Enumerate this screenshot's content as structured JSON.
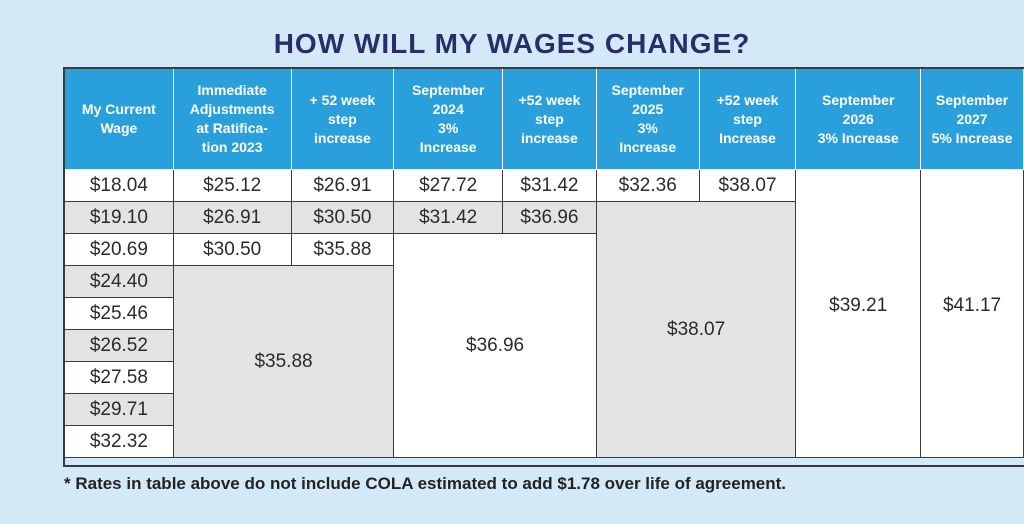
{
  "title": "HOW WILL MY WAGES CHANGE?",
  "headers": {
    "h0": [
      "My Current",
      "Wage"
    ],
    "h1": [
      "Immediate",
      "Adjustments",
      "at Ratifica-",
      "tion 2023"
    ],
    "h2": [
      "+ 52 week",
      "step",
      "increase"
    ],
    "h3": [
      "September",
      "2024",
      "3%",
      "Increase"
    ],
    "h4": [
      "+52 week",
      "step",
      "increase"
    ],
    "h5": [
      "September",
      "2025",
      "3%",
      "Increase"
    ],
    "h6": [
      "+52 week",
      "step",
      "Increase"
    ],
    "h7": [
      "September",
      "2026",
      "3% Increase"
    ],
    "h8": [
      "September",
      "2027",
      "5% Increase"
    ]
  },
  "current_wages": [
    "$18.04",
    "$19.10",
    "$20.69",
    "$24.40",
    "$25.46",
    "$26.52",
    "$27.58",
    "$29.71",
    "$32.32"
  ],
  "immediate_adjustments": [
    "$25.12",
    "$26.91",
    "$30.50",
    "$35.88"
  ],
  "step_increase_1": [
    "$26.91",
    "$30.50",
    "$35.88"
  ],
  "sep_2024": [
    "$27.72",
    "$31.42",
    "$36.96"
  ],
  "step_increase_2": [
    "$31.42",
    "$36.96"
  ],
  "sep_2025": [
    "$32.36",
    "$38.07"
  ],
  "step_increase_3": [
    "$38.07"
  ],
  "sep_2026": "$39.21",
  "sep_2027": "$41.17",
  "footnote": "* Rates in table above do not include COLA estimated to add $1.78 over life of agreement."
}
